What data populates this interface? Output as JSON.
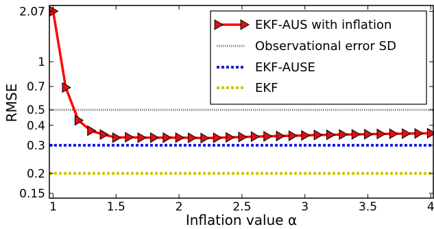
{
  "chart_data": {
    "type": "line",
    "title": "",
    "xlabel": "Inflation value α",
    "ylabel": "RMSE",
    "xlim": [
      0.97,
      4.02
    ],
    "ylim": [
      0.14,
      2.25
    ],
    "y_scale": "log",
    "grid": false,
    "legend_position": "top-right",
    "x_ticks": [
      1,
      1.5,
      2,
      2.5,
      3,
      3.5,
      4
    ],
    "x_tick_labels": [
      "1",
      "1.5",
      "2",
      "2.5",
      "3",
      "3.5",
      "4"
    ],
    "y_ticks": [
      0.15,
      0.2,
      0.3,
      0.4,
      0.5,
      0.7,
      1,
      2.07
    ],
    "y_tick_labels": [
      "0.15",
      "0.2",
      "0.3",
      "0.4",
      "0.5",
      "0.7",
      "1",
      "2.07"
    ],
    "series": [
      {
        "name": "EKF-AUS with inflation",
        "style": "solid-line-triangle-markers",
        "color": "#ff0000",
        "marker_color": "#dd1111",
        "x": [
          1,
          1.1,
          1.2,
          1.3,
          1.4,
          1.5,
          1.6,
          1.7,
          1.8,
          1.9,
          2,
          2.1,
          2.2,
          2.3,
          2.4,
          2.5,
          2.6,
          2.7,
          2.8,
          2.9,
          3,
          3.1,
          3.2,
          3.3,
          3.4,
          3.5,
          3.6,
          3.7,
          3.8,
          3.9,
          4
        ],
        "y": [
          2.07,
          0.69,
          0.43,
          0.37,
          0.35,
          0.335,
          0.337,
          0.335,
          0.335,
          0.335,
          0.335,
          0.334,
          0.333,
          0.334,
          0.336,
          0.338,
          0.34,
          0.341,
          0.343,
          0.344,
          0.346,
          0.348,
          0.349,
          0.35,
          0.351,
          0.352,
          0.353,
          0.354,
          0.355,
          0.356,
          0.357
        ]
      },
      {
        "name": "Observational error SD",
        "style": "hline-dotted-gray",
        "color": "#8c8c8c",
        "y": 0.5
      },
      {
        "name": "EKF-AUSE",
        "style": "hline-dotted-blue",
        "color": "#1a1ae0",
        "y": 0.3
      },
      {
        "name": "EKF",
        "style": "hline-dotted-olive",
        "color": "#c8c800",
        "y": 0.2
      }
    ]
  }
}
